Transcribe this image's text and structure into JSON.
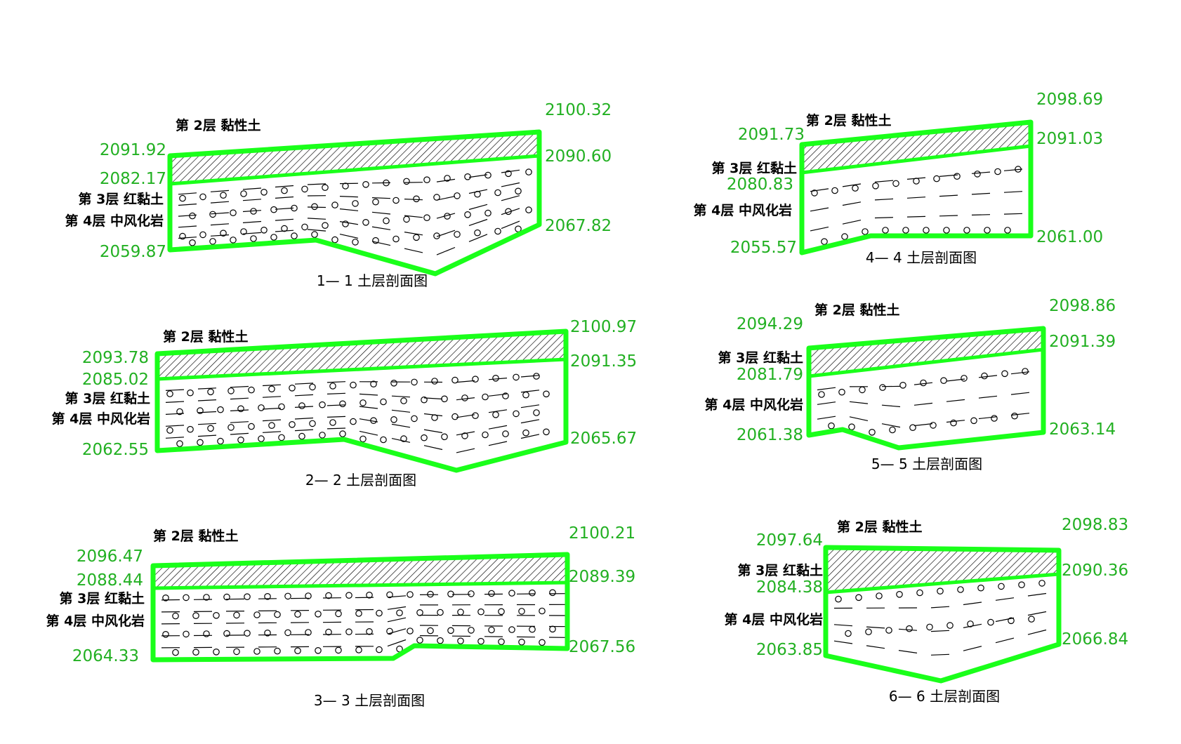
{
  "sections": [
    {
      "title": "1— 1 土层剖面图",
      "labels": {
        "layer2": "第 2层 黏性土",
        "layer3": "第 3层 红黏土",
        "layer4": "第 4层 中风化岩"
      },
      "elevations": {
        "left_top": "2091.92",
        "left_mid": "2082.17",
        "left_bottom": "2059.87",
        "right_top": "2100.32",
        "right_mid": "2090.60",
        "right_bottom": "2067.82"
      }
    },
    {
      "title": "2— 2 土层剖面图",
      "labels": {
        "layer2": "第 2层 黏性土",
        "layer3": "第 3层 红黏土",
        "layer4": "第 4层 中风化岩"
      },
      "elevations": {
        "left_top": "2093.78",
        "left_mid": "2085.02",
        "left_bottom": "2062.55",
        "right_top": "2100.97",
        "right_mid": "2091.35",
        "right_bottom": "2065.67"
      }
    },
    {
      "title": "3— 3 土层剖面图",
      "labels": {
        "layer2": "第 2层 黏性土",
        "layer3": "第 3层 红黏土",
        "layer4": "第 4层 中风化岩"
      },
      "elevations": {
        "left_top": "2096.47",
        "left_mid": "2088.44",
        "left_bottom": "2064.33",
        "right_top": "2100.21",
        "right_mid": "2089.39",
        "right_bottom": "2067.56"
      }
    },
    {
      "title": "4— 4 土层剖面图",
      "labels": {
        "layer2": "第 2层 黏性土",
        "layer3": "第 3层 红黏土",
        "layer4": "第 4层 中风化岩"
      },
      "elevations": {
        "left_top": "2091.73",
        "left_mid": "2080.83",
        "left_bottom": "2055.57",
        "right_top": "2098.69",
        "right_mid": "2091.03",
        "right_bottom": "2061.00"
      }
    },
    {
      "title": "5— 5 土层剖面图",
      "labels": {
        "layer2": "第 2层 黏性土",
        "layer3": "第 3层 红黏土",
        "layer4": "第 4层 中风化岩"
      },
      "elevations": {
        "left_top": "2094.29",
        "left_mid": "2081.79",
        "left_bottom": "2061.38",
        "right_top": "2098.86",
        "right_mid": "2091.39",
        "right_bottom": "2063.14"
      }
    },
    {
      "title": "6— 6 土层剖面图",
      "labels": {
        "layer2": "第 2层 黏性土",
        "layer3": "第 3层 红黏土",
        "layer4": "第 4层 中风化岩"
      },
      "elevations": {
        "left_top": "2097.64",
        "left_mid": "2084.38",
        "left_bottom": "2063.85",
        "right_top": "2098.83",
        "right_mid": "2090.36",
        "right_bottom": "2066.84"
      }
    }
  ],
  "colors": {
    "elevation_text": "#22b022",
    "boundary": "#1aff1a",
    "line": "#000000"
  }
}
